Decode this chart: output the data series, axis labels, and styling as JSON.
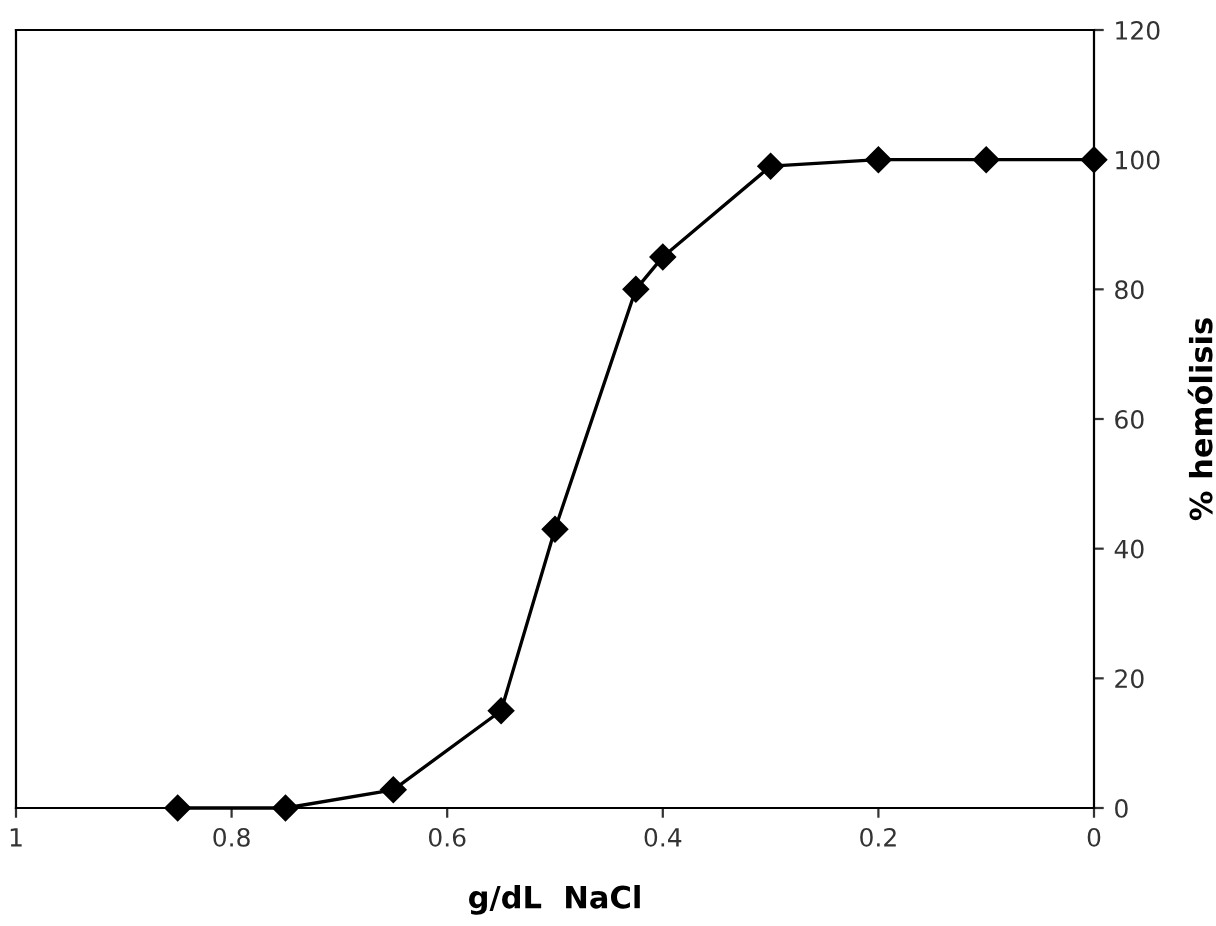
{
  "chart_data": {
    "type": "line",
    "xlabel": "g/dL  NaCl",
    "ylabel": "% hemólisis",
    "x": [
      0.85,
      0.75,
      0.65,
      0.55,
      0.5,
      0.425,
      0.4,
      0.3,
      0.2,
      0.1,
      0
    ],
    "series": [
      {
        "color": "#000000",
        "values": [
          0,
          0,
          2.8,
          15,
          43,
          80,
          85,
          99,
          100,
          100,
          100
        ]
      }
    ],
    "xlim": [
      1,
      0
    ],
    "xticks": [
      1,
      0.8,
      0.6,
      0.4,
      0.2,
      0
    ],
    "ylim": [
      0,
      120
    ],
    "yticks": [
      0,
      20,
      40,
      60,
      80,
      100,
      120
    ],
    "marker": "diamond",
    "line_style": "solid",
    "grid": false,
    "legend": false
  }
}
